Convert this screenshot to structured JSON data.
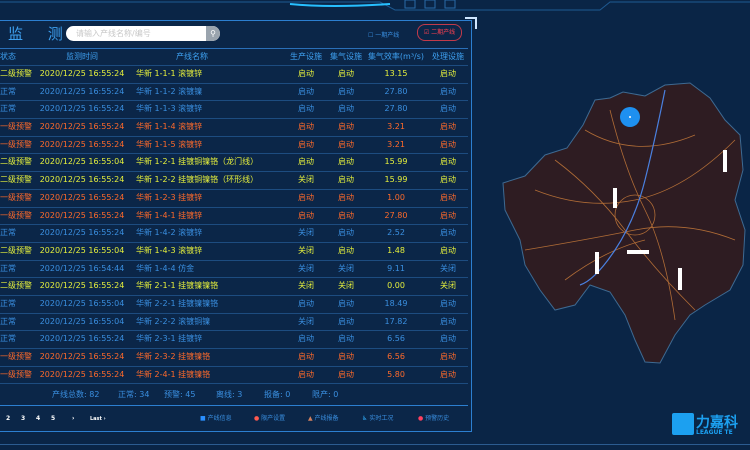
{
  "panel": {
    "title": "监 测",
    "search_placeholder": "请输入产线名称/编号",
    "phase1": "一期产线",
    "phase2": "二期产线"
  },
  "columns": [
    "状态",
    "监测时间",
    "产线名称",
    "生产设施",
    "集气设施",
    "集气效率(m³/s)",
    "处理设施"
  ],
  "rows": [
    {
      "status": "二级预警",
      "time": "2020/12/25 16:55:24",
      "name": "华新 1-1-1 滚镀锌",
      "prod": "启动",
      "gas": "启动",
      "eff": "13.15",
      "treat": "启动",
      "level": 0
    },
    {
      "status": "正常",
      "time": "2020/12/25 16:55:24",
      "name": "华新 1-1-2 滚镀镍",
      "prod": "启动",
      "gas": "启动",
      "eff": "27.80",
      "treat": "启动",
      "level": 1
    },
    {
      "status": "正常",
      "time": "2020/12/25 16:55:24",
      "name": "华新 1-1-3 滚镀锌",
      "prod": "启动",
      "gas": "启动",
      "eff": "27.80",
      "treat": "启动",
      "level": 1
    },
    {
      "status": "一级预警",
      "time": "2020/12/25 16:55:24",
      "name": "华新 1-1-4 滚镀锌",
      "prod": "启动",
      "gas": "启动",
      "eff": "3.21",
      "treat": "启动",
      "level": 2
    },
    {
      "status": "一级预警",
      "time": "2020/12/25 16:55:24",
      "name": "华新 1-1-5 滚镀锌",
      "prod": "启动",
      "gas": "启动",
      "eff": "3.21",
      "treat": "启动",
      "level": 2
    },
    {
      "status": "二级预警",
      "time": "2020/12/25 16:55:04",
      "name": "华新 1-2-1 挂镀铜镍铬（龙门线）",
      "prod": "启动",
      "gas": "启动",
      "eff": "15.99",
      "treat": "启动",
      "level": 0
    },
    {
      "status": "二级预警",
      "time": "2020/12/25 16:55:24",
      "name": "华新 1-2-2 挂镀铜镍铬（环形线）",
      "prod": "关闭",
      "gas": "启动",
      "eff": "15.99",
      "treat": "启动",
      "level": 0
    },
    {
      "status": "一级预警",
      "time": "2020/12/25 16:55:24",
      "name": "华新 1-2-3 挂镀锌",
      "prod": "启动",
      "gas": "启动",
      "eff": "1.00",
      "treat": "启动",
      "level": 2
    },
    {
      "status": "一级预警",
      "time": "2020/12/25 16:55:24",
      "name": "华新 1-4-1 挂镀锌",
      "prod": "启动",
      "gas": "启动",
      "eff": "27.80",
      "treat": "启动",
      "level": 2
    },
    {
      "status": "正常",
      "time": "2020/12/25 16:55:24",
      "name": "华新 1-4-2 滚镀锌",
      "prod": "关闭",
      "gas": "启动",
      "eff": "2.52",
      "treat": "启动",
      "level": 1
    },
    {
      "status": "二级预警",
      "time": "2020/12/25 16:55:04",
      "name": "华新 1-4-3 滚镀锌",
      "prod": "关闭",
      "gas": "启动",
      "eff": "1.48",
      "treat": "启动",
      "level": 0
    },
    {
      "status": "正常",
      "time": "2020/12/25 16:54:44",
      "name": "华新 1-4-4 仿金",
      "prod": "关闭",
      "gas": "关闭",
      "eff": "9.11",
      "treat": "关闭",
      "level": 1
    },
    {
      "status": "二级预警",
      "time": "2020/12/25 16:55:24",
      "name": "华新 2-1-1 挂镀镍镍铬",
      "prod": "关闭",
      "gas": "关闭",
      "eff": "0.00",
      "treat": "关闭",
      "level": 0
    },
    {
      "status": "正常",
      "time": "2020/12/25 16:55:04",
      "name": "华新 2-2-1 挂镀镍镍铬",
      "prod": "启动",
      "gas": "启动",
      "eff": "18.49",
      "treat": "启动",
      "level": 1
    },
    {
      "status": "正常",
      "time": "2020/12/25 16:55:04",
      "name": "华新 2-2-2 滚镀铜镍",
      "prod": "关闭",
      "gas": "启动",
      "eff": "17.82",
      "treat": "启动",
      "level": 1
    },
    {
      "status": "正常",
      "time": "2020/12/25 16:55:24",
      "name": "华新 2-3-1 挂镀锌",
      "prod": "启动",
      "gas": "启动",
      "eff": "6.56",
      "treat": "启动",
      "level": 1
    },
    {
      "status": "一级预警",
      "time": "2020/12/25 16:55:24",
      "name": "华新 2-3-2 挂镀镍铬",
      "prod": "启动",
      "gas": "启动",
      "eff": "6.56",
      "treat": "启动",
      "level": 2
    },
    {
      "status": "一级预警",
      "time": "2020/12/25 16:55:24",
      "name": "华新 2-4-1 挂镀镍铬",
      "prod": "启动",
      "gas": "启动",
      "eff": "5.80",
      "treat": "启动",
      "level": 2
    }
  ],
  "summary": [
    "产线总数: 82",
    "正常: 34",
    "预警: 45",
    "离线: 3",
    "报备: 0",
    "限产: 0"
  ],
  "pagination": [
    "2",
    "3",
    "4",
    "5",
    "›",
    "Last ›"
  ],
  "actions": [
    {
      "label": "产线信息",
      "icon": "info-icon"
    },
    {
      "label": "限产设置",
      "icon": "limit-icon"
    },
    {
      "label": "产线报备",
      "icon": "warning-icon"
    },
    {
      "label": "实时工况",
      "icon": "realtime-icon"
    },
    {
      "label": "预警历史",
      "icon": "history-icon"
    }
  ],
  "colors": {
    "level0": "#e6f03c",
    "level1": "#3a8fe0",
    "level2": "#ff6a2a",
    "accent": "#1ca0f0"
  },
  "logo": {
    "cn": "力嘉科技",
    "en": "LEAGUE TECH"
  }
}
